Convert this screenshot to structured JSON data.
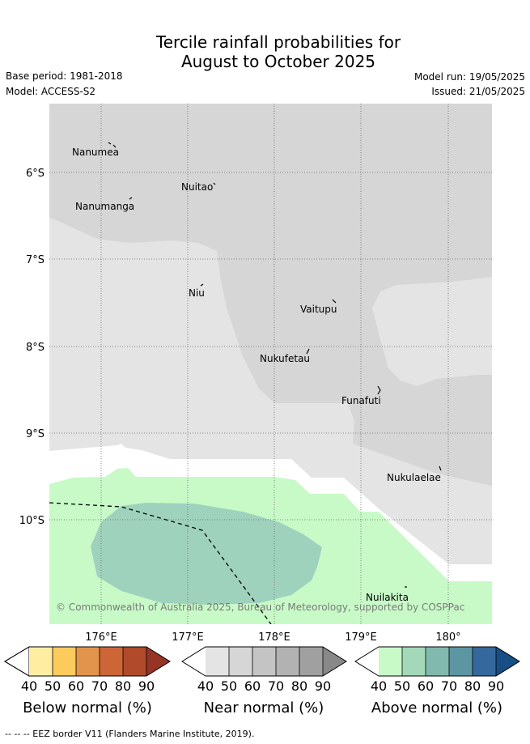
{
  "title": {
    "line1": "Tercile rainfall probabilities for",
    "line2": "August to October 2025"
  },
  "meta": {
    "base_period": "Base period: 1981-2018",
    "model": "Model: ACCESS-S2",
    "model_run": "Model run: 19/05/2025",
    "issued": "Issued: 21/05/2025"
  },
  "map": {
    "lat_labels": [
      "6°S",
      "7°S",
      "8°S",
      "9°S",
      "10°S"
    ],
    "lon_labels": [
      "176°E",
      "177°E",
      "178°E",
      "179°E",
      "180°"
    ],
    "places": [
      "Nanumea",
      "Nuitao",
      "Nanumanga",
      "Niu",
      "Vaitupu",
      "Nukufetau",
      "Funafuti",
      "Nukulaelae",
      "Nuilakita"
    ],
    "copyright": "© Commonwealth of Australia 2025, Bureau of Meteorology, supported by COSPPac",
    "colors": {
      "near_normal_light": "#e4e4e4",
      "near_normal_medium": "#d6d6d6",
      "above_normal_40_50": "#c8fac8",
      "above_normal_60_70": "#9fd2bd"
    }
  },
  "colorbars": [
    {
      "title": "Below normal (%)",
      "ticks": [
        "40",
        "50",
        "60",
        "70",
        "80",
        "90"
      ],
      "colors": [
        "#ffeea2",
        "#fdca5c",
        "#e2944c",
        "#cd6536",
        "#b04a2a",
        "#963425"
      ]
    },
    {
      "title": "Near normal (%)",
      "ticks": [
        "40",
        "50",
        "60",
        "70",
        "80",
        "90"
      ],
      "colors": [
        "#e4e4e4",
        "#d6d6d6",
        "#c4c4c4",
        "#b2b2b2",
        "#a0a0a0",
        "#888888"
      ]
    },
    {
      "title": "Above normal (%)",
      "ticks": [
        "40",
        "50",
        "60",
        "70",
        "80",
        "90"
      ],
      "colors": [
        "#c8fac8",
        "#a3d9b8",
        "#82b9ae",
        "#5c96a3",
        "#35689c",
        "#174e86"
      ]
    }
  ],
  "footer": "-- -- -- EEZ border V11 (Flanders Marine Institute, 2019)."
}
